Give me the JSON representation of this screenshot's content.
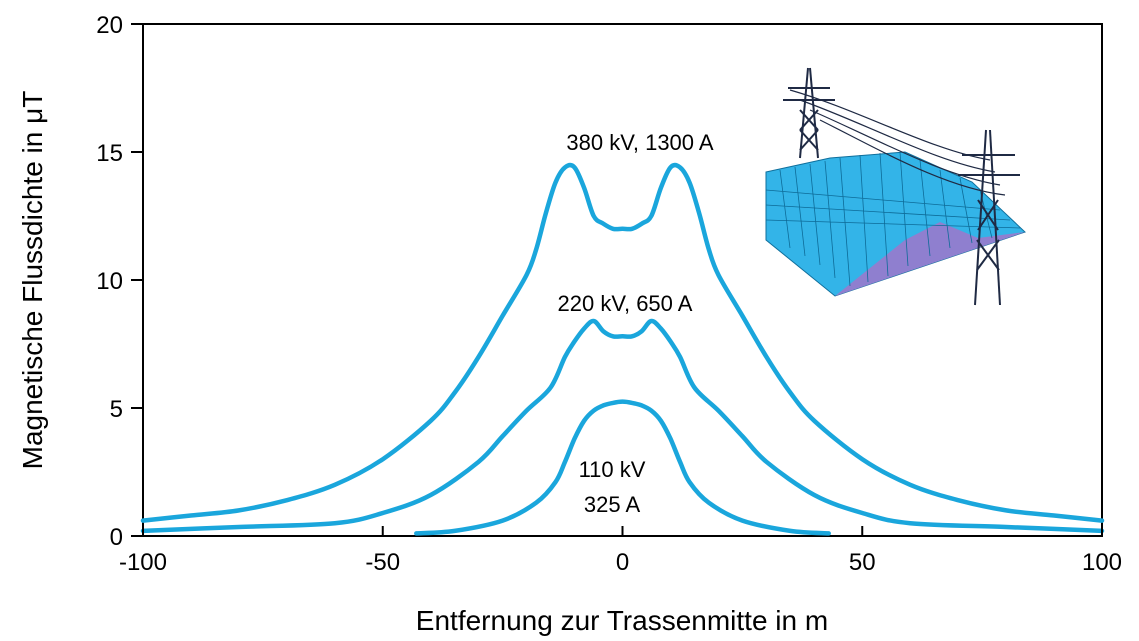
{
  "chart_data": {
    "type": "line",
    "title": "",
    "xlabel": "Entfernung zur Trassenmitte in m",
    "ylabel": "Magnetische Flussdichte in μT",
    "xlim": [
      -100,
      100
    ],
    "ylim": [
      0,
      20
    ],
    "xticks": [
      -100,
      -50,
      0,
      50,
      100
    ],
    "yticks": [
      0,
      5,
      10,
      15,
      20
    ],
    "xtick_labels": [
      "-100",
      "-50",
      "0",
      "50",
      "100"
    ],
    "ytick_labels": [
      "0",
      "5",
      "10",
      "15",
      "20"
    ],
    "grid": false,
    "legend": "none",
    "line_color": "#1aa6dc",
    "series": [
      {
        "label_lines": [
          "380 kV, 1300 A"
        ],
        "x": [
          -100,
          -90,
          -80,
          -70,
          -60,
          -50,
          -40,
          -35,
          -30,
          -25,
          -20,
          -18,
          -16,
          -14,
          -12,
          -10,
          -8,
          -6,
          -4,
          -2,
          0,
          2,
          4,
          6,
          8,
          10,
          12,
          14,
          16,
          18,
          20,
          25,
          30,
          35,
          40,
          50,
          60,
          70,
          80,
          90,
          100
        ],
        "y": [
          0.6,
          0.8,
          1.0,
          1.4,
          2.0,
          3.0,
          4.5,
          5.6,
          7.0,
          8.6,
          10.2,
          11.2,
          12.6,
          13.8,
          14.4,
          14.4,
          13.6,
          12.5,
          12.2,
          12.0,
          12.0,
          12.0,
          12.2,
          12.5,
          13.6,
          14.4,
          14.4,
          13.8,
          12.6,
          11.2,
          10.2,
          8.6,
          7.0,
          5.6,
          4.5,
          3.0,
          2.0,
          1.4,
          1.0,
          0.8,
          0.6
        ]
      },
      {
        "label_lines": [
          "220 kV, 650 A"
        ],
        "x": [
          -100,
          -80,
          -60,
          -50,
          -40,
          -30,
          -25,
          -20,
          -15,
          -12,
          -10,
          -8,
          -6,
          -4,
          -2,
          0,
          2,
          4,
          6,
          8,
          10,
          12,
          15,
          20,
          25,
          30,
          40,
          50,
          60,
          80,
          100
        ],
        "y": [
          0.2,
          0.35,
          0.5,
          0.9,
          1.6,
          2.9,
          3.9,
          4.9,
          5.8,
          7.0,
          7.6,
          8.1,
          8.4,
          8.0,
          7.8,
          7.8,
          7.8,
          8.0,
          8.4,
          8.1,
          7.6,
          7.0,
          5.8,
          4.9,
          3.9,
          2.9,
          1.6,
          0.9,
          0.5,
          0.35,
          0.2
        ]
      },
      {
        "label_lines": [
          "110 kV",
          "325 A"
        ],
        "x": [
          -43,
          -35,
          -25,
          -18,
          -14,
          -12,
          -10,
          -8,
          -6,
          -4,
          -2,
          0,
          2,
          4,
          6,
          8,
          10,
          12,
          14,
          18,
          25,
          35,
          43
        ],
        "y": [
          0.1,
          0.2,
          0.6,
          1.3,
          2.1,
          2.9,
          3.8,
          4.5,
          4.9,
          5.1,
          5.2,
          5.25,
          5.2,
          5.1,
          4.9,
          4.5,
          3.8,
          2.9,
          2.1,
          1.3,
          0.6,
          0.2,
          0.1
        ]
      }
    ]
  }
}
